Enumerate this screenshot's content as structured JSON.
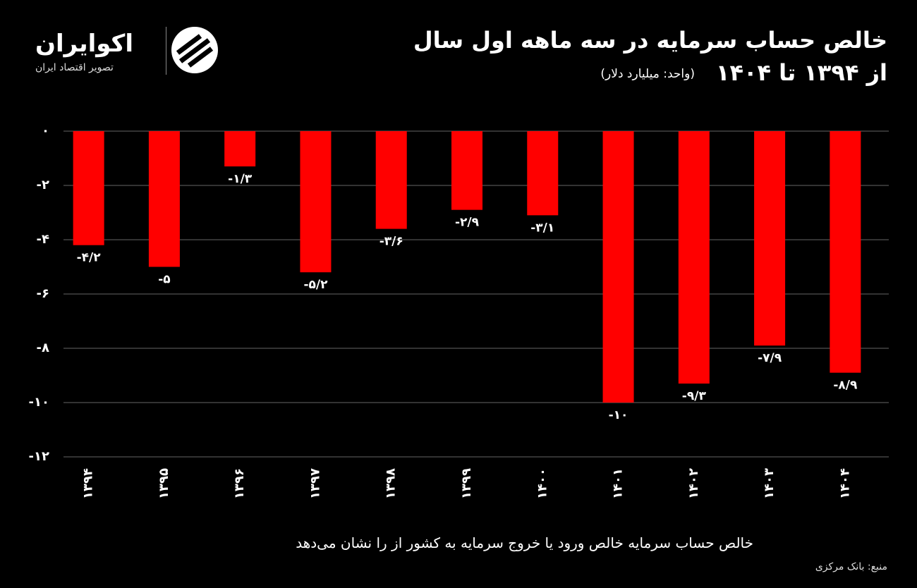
{
  "brand": {
    "name": "اکوایران",
    "tagline": "تصویر اقتصاد ایران"
  },
  "chart_data": {
    "type": "bar",
    "title": "خالص حساب سرمایه در سه ماهه اول سال",
    "subtitle": "از ۱۳۹۴ تا ۱۴۰۴",
    "unit": "(واحد: میلیارد دلار)",
    "caption": "خالص حساب سرمایه خالص ورود یا خروج سرمایه به کشور از را نشان می‌دهد",
    "source": "منبع: بانک مرکزی",
    "categories": [
      "۱۳۹۴",
      "۱۳۹۵",
      "۱۳۹۶",
      "۱۳۹۷",
      "۱۳۹۸",
      "۱۳۹۹",
      "۱۴۰۰",
      "۱۴۰۱",
      "۱۴۰۲",
      "۱۴۰۳",
      "۱۴۰۴"
    ],
    "values": [
      -4.2,
      -5,
      -1.3,
      -5.2,
      -3.6,
      -2.9,
      -3.1,
      -10,
      -9.3,
      -7.9,
      -8.9
    ],
    "value_labels": [
      "-۴/۲",
      "-۵",
      "-۱/۳",
      "-۵/۲",
      "-۳/۶",
      "-۲/۹",
      "-۳/۱",
      "-۱۰",
      "-۹/۳",
      "-۷/۹",
      "-۸/۹"
    ],
    "color": "#ff0000",
    "ylim": [
      -12,
      0
    ],
    "yticks": [
      {
        "value": 0,
        "label": "۰"
      },
      {
        "value": -2,
        "label": "-۲"
      },
      {
        "value": -4,
        "label": "-۴"
      },
      {
        "value": -6,
        "label": "-۶"
      },
      {
        "value": -8,
        "label": "-۸"
      },
      {
        "value": -10,
        "label": "-۱۰"
      },
      {
        "value": -12,
        "label": "-۱۲"
      }
    ],
    "grid": true
  }
}
